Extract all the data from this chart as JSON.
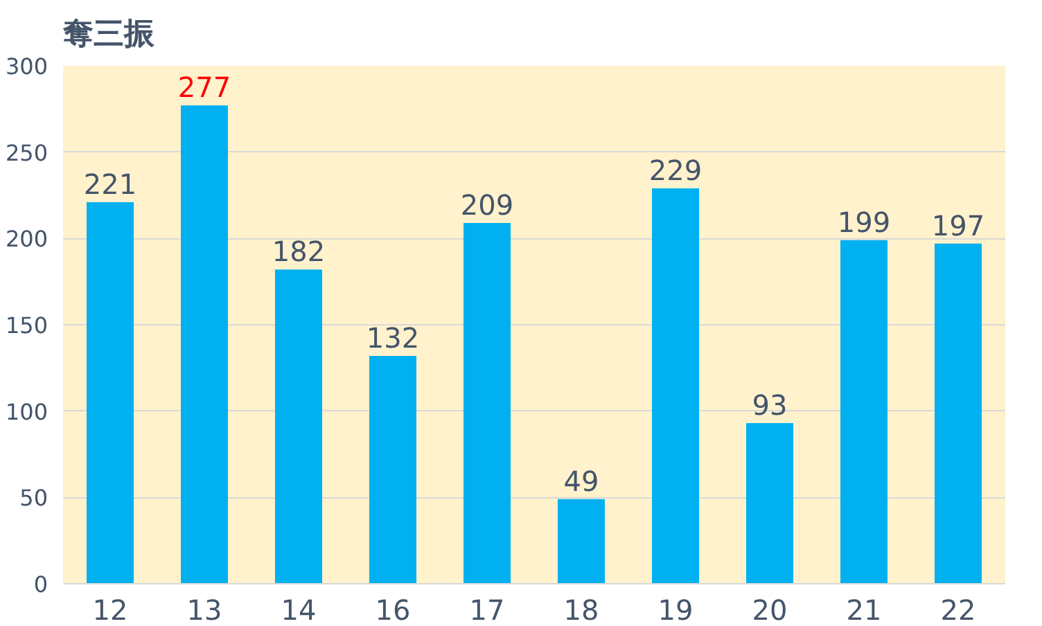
{
  "chart_data": {
    "type": "bar",
    "title": "奪三振",
    "categories": [
      "12",
      "13",
      "14",
      "16",
      "17",
      "18",
      "19",
      "20",
      "21",
      "22"
    ],
    "values": [
      221,
      277,
      182,
      132,
      209,
      49,
      229,
      93,
      199,
      197
    ],
    "color": "#00b0f0",
    "ylim": [
      0,
      300
    ],
    "yticks": [
      0,
      50,
      100,
      150,
      200,
      250,
      300
    ],
    "grid": "y",
    "data_labels": true
  }
}
